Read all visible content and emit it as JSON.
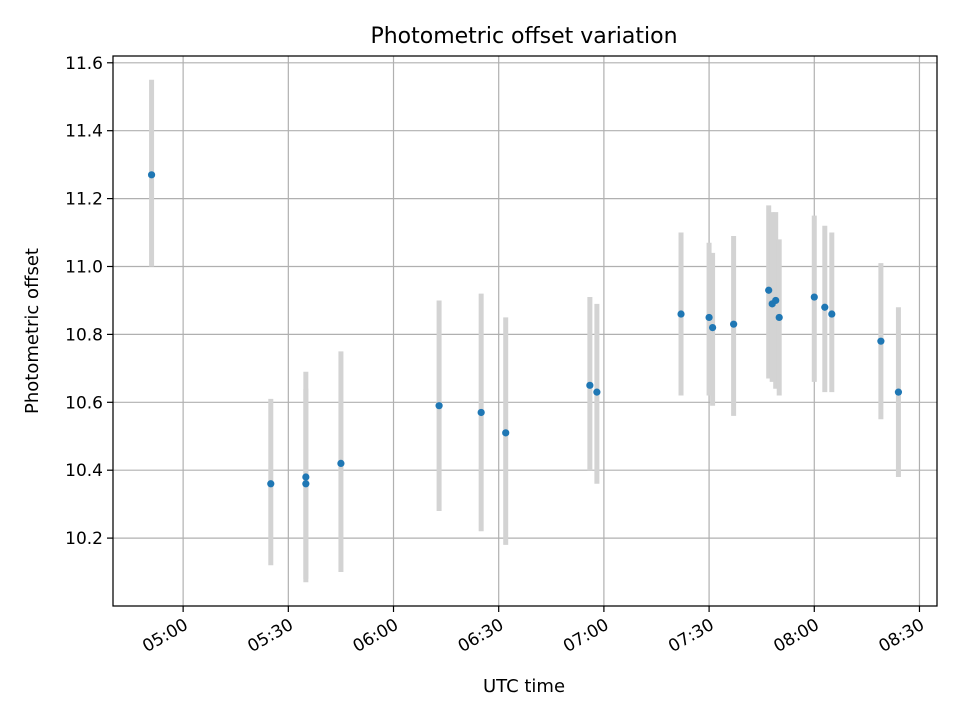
{
  "chart_data": {
    "type": "scatter",
    "title": "Photometric offset variation",
    "xlabel": "UTC time",
    "ylabel": "Photometric offset",
    "x_axis": "time of day (HH:MM, UTC)",
    "xlim": [
      "04:40",
      "08:35"
    ],
    "ylim": [
      10.0,
      11.62
    ],
    "grid": true,
    "xticks": [
      "05:00",
      "05:30",
      "06:00",
      "06:30",
      "07:00",
      "07:30",
      "08:00",
      "08:30"
    ],
    "yticks": [
      10.2,
      10.4,
      10.6,
      10.8,
      11.0,
      11.2,
      11.4,
      11.6
    ],
    "ytick_labels": [
      "10.2",
      "10.4",
      "10.6",
      "10.8",
      "11.0",
      "11.2",
      "11.4",
      "11.6"
    ],
    "colors": {
      "point": "#1f77b4",
      "errorbar": "#d3d3d3",
      "grid": "#b0b0b0"
    },
    "points": [
      {
        "t": "04:51",
        "y": 11.27,
        "low": 11.0,
        "high": 11.55
      },
      {
        "t": "05:25",
        "y": 10.36,
        "low": 10.12,
        "high": 10.61
      },
      {
        "t": "05:35",
        "y": 10.36,
        "low": 10.08,
        "high": 10.64
      },
      {
        "t": "05:35",
        "y": 10.38,
        "low": 10.07,
        "high": 10.69
      },
      {
        "t": "05:45",
        "y": 10.42,
        "low": 10.1,
        "high": 10.75
      },
      {
        "t": "06:13",
        "y": 10.59,
        "low": 10.28,
        "high": 10.9
      },
      {
        "t": "06:25",
        "y": 10.57,
        "low": 10.22,
        "high": 10.92
      },
      {
        "t": "06:32",
        "y": 10.51,
        "low": 10.18,
        "high": 10.85
      },
      {
        "t": "06:56",
        "y": 10.65,
        "low": 10.4,
        "high": 10.91
      },
      {
        "t": "06:58",
        "y": 10.63,
        "low": 10.36,
        "high": 10.89
      },
      {
        "t": "07:22",
        "y": 10.86,
        "low": 10.62,
        "high": 11.1
      },
      {
        "t": "07:30",
        "y": 10.85,
        "low": 10.62,
        "high": 11.07
      },
      {
        "t": "07:31",
        "y": 10.82,
        "low": 10.59,
        "high": 11.04
      },
      {
        "t": "07:37",
        "y": 10.83,
        "low": 10.56,
        "high": 11.09
      },
      {
        "t": "07:47",
        "y": 10.93,
        "low": 10.67,
        "high": 11.18
      },
      {
        "t": "07:48",
        "y": 10.89,
        "low": 10.66,
        "high": 11.16
      },
      {
        "t": "07:49",
        "y": 10.9,
        "low": 10.64,
        "high": 11.16
      },
      {
        "t": "07:50",
        "y": 10.85,
        "low": 10.62,
        "high": 11.08
      },
      {
        "t": "08:00",
        "y": 10.91,
        "low": 10.66,
        "high": 11.15
      },
      {
        "t": "08:03",
        "y": 10.88,
        "low": 10.63,
        "high": 11.12
      },
      {
        "t": "08:05",
        "y": 10.86,
        "low": 10.63,
        "high": 11.1
      },
      {
        "t": "08:19",
        "y": 10.78,
        "low": 10.55,
        "high": 11.01
      },
      {
        "t": "08:24",
        "y": 10.63,
        "low": 10.38,
        "high": 10.88
      }
    ]
  }
}
